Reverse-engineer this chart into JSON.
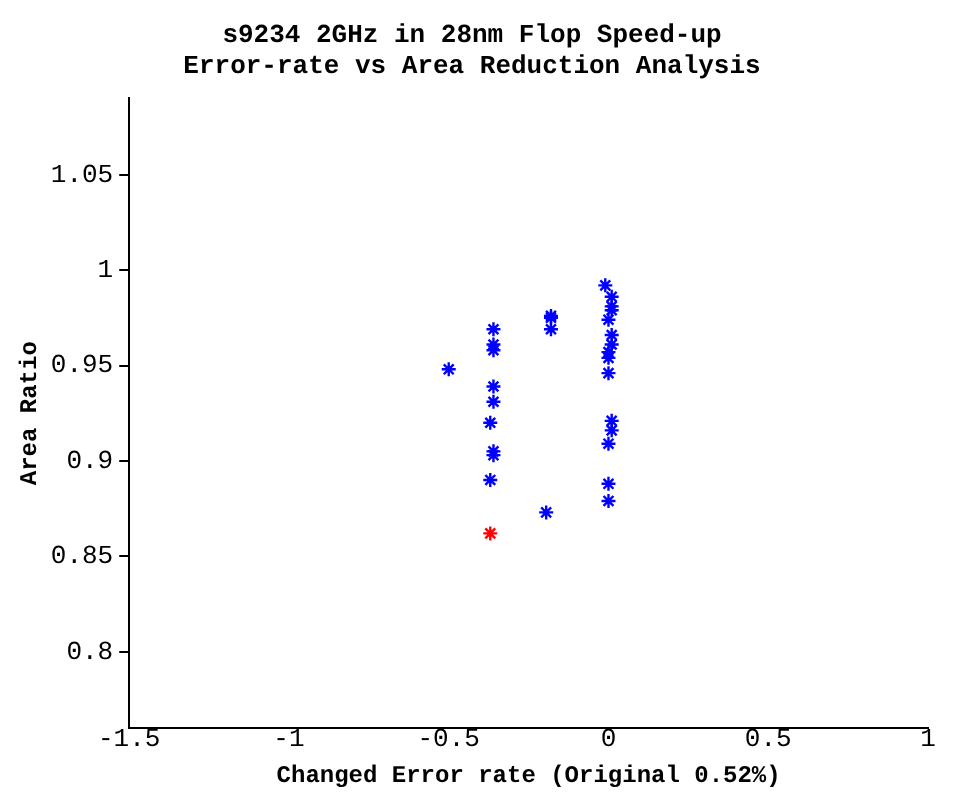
{
  "chart_data": {
    "type": "scatter",
    "title": "s9234 2GHz in 28nm Flop Speed-up\nError-rate vs Area Reduction Analysis",
    "xlabel": "Changed Error rate (Original 0.52%)",
    "ylabel": "Area Ratio",
    "marker": "cross",
    "grid": false,
    "legend": false,
    "xlim": [
      -1.5,
      1
    ],
    "xticks": [
      -1.5,
      -1,
      -0.5,
      0,
      0.5,
      1
    ],
    "ylim": [
      0.76,
      1.09
    ],
    "yticks": [
      0.8,
      0.85,
      0.9,
      0.95,
      1,
      1.05
    ],
    "series": [
      {
        "color": "#0000ff",
        "x": [
          -0.5,
          -0.36,
          -0.36,
          -0.36,
          -0.36,
          -0.36,
          -0.37,
          -0.36,
          -0.36,
          -0.37,
          -0.18,
          -0.18,
          -0.18,
          -0.195,
          -0.01,
          0.01,
          0.01,
          0.01,
          0,
          0.01,
          0.01,
          0,
          0,
          0,
          0.01,
          0.01,
          0,
          0,
          0
        ],
        "values": [
          0.948,
          0.969,
          0.961,
          0.958,
          0.939,
          0.931,
          0.92,
          0.905,
          0.903,
          0.89,
          0.976,
          0.975,
          0.969,
          0.873,
          0.992,
          0.986,
          0.981,
          0.979,
          0.974,
          0.966,
          0.961,
          0.957,
          0.954,
          0.946,
          0.921,
          0.916,
          0.909,
          0.888,
          0.879
        ]
      },
      {
        "color": "#ff0000",
        "x": [
          -0.37
        ],
        "values": [
          0.862
        ]
      }
    ]
  }
}
